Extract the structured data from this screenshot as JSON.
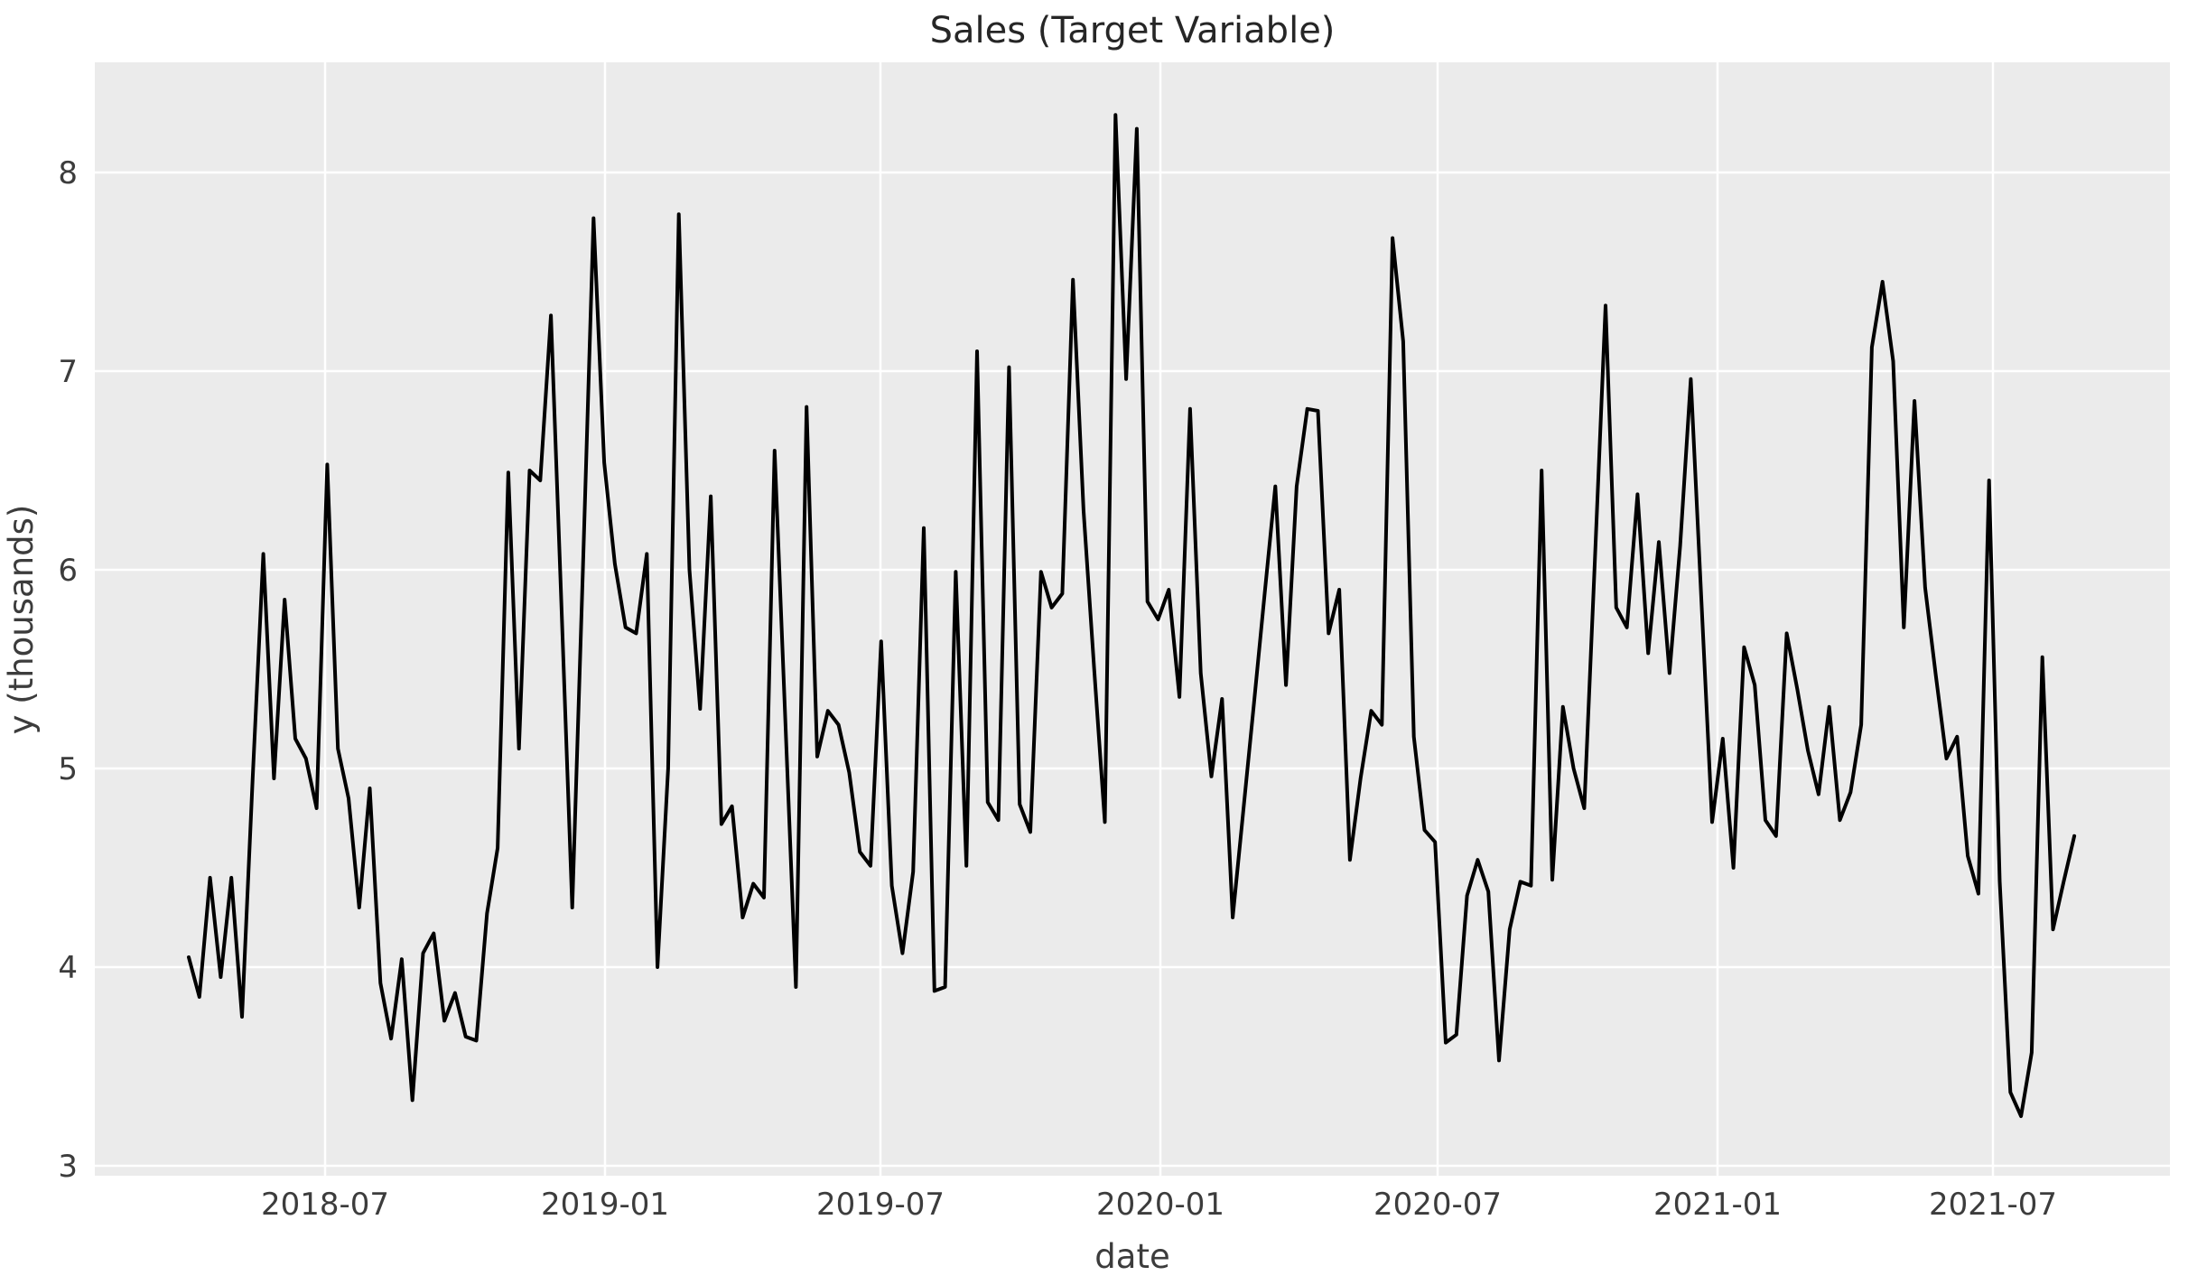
{
  "title": "Sales (Target Variable)",
  "chart_data": {
    "type": "line",
    "title": "Sales (Target Variable)",
    "xlabel": "date",
    "ylabel": "y (thousands)",
    "x_tick_labels": [
      "2018-07",
      "2019-01",
      "2019-07",
      "2020-01",
      "2020-07",
      "2021-01",
      "2021-07"
    ],
    "y_tick_labels": [
      "3",
      "4",
      "5",
      "6",
      "7",
      "8"
    ],
    "y_tick_values": [
      3,
      4,
      5,
      6,
      7,
      8
    ],
    "ylim": [
      2.95,
      8.55
    ],
    "x_range_shown": [
      "2018-04",
      "2021-09"
    ],
    "frequency": "weekly",
    "grid": true,
    "legend": false,
    "line_color": "#000000",
    "plot_background_color": "#EBEBEB",
    "grid_color": "#FFFFFF",
    "figure_background_color": "#FFFFFF",
    "series": [
      {
        "name": "y",
        "values": [
          4.05,
          3.85,
          4.45,
          3.95,
          4.45,
          3.75,
          4.95,
          6.08,
          4.95,
          5.85,
          5.15,
          5.05,
          4.8,
          6.53,
          5.1,
          4.85,
          4.3,
          4.9,
          3.92,
          3.64,
          4.04,
          3.33,
          4.07,
          4.17,
          3.73,
          3.87,
          3.65,
          3.63,
          4.27,
          4.6,
          6.49,
          5.1,
          6.5,
          6.45,
          7.28,
          5.8,
          4.3,
          6.0,
          7.77,
          6.54,
          6.03,
          5.71,
          5.68,
          6.08,
          4.0,
          5.0,
          7.79,
          6.0,
          5.3,
          6.37,
          4.72,
          4.81,
          4.25,
          4.42,
          4.35,
          6.6,
          5.25,
          3.9,
          6.82,
          5.06,
          5.29,
          5.22,
          4.98,
          4.58,
          4.51,
          5.64,
          4.41,
          4.07,
          4.48,
          6.21,
          3.88,
          3.9,
          5.99,
          4.51,
          7.1,
          4.83,
          4.74,
          7.02,
          4.82,
          4.68,
          5.99,
          5.81,
          5.88,
          7.46,
          6.3,
          5.5,
          4.73,
          8.29,
          6.96,
          8.22,
          5.84,
          5.75,
          5.9,
          5.36,
          6.81,
          5.48,
          4.96,
          5.35,
          4.25,
          4.79,
          5.33,
          5.88,
          6.42,
          5.42,
          6.42,
          6.81,
          6.8,
          5.68,
          5.9,
          4.54,
          4.95,
          5.29,
          5.22,
          7.67,
          7.15,
          5.16,
          4.69,
          4.63,
          3.62,
          3.66,
          4.36,
          4.54,
          4.38,
          3.53,
          4.19,
          4.43,
          4.41,
          6.5,
          4.44,
          5.31,
          5.0,
          4.8,
          6.05,
          7.33,
          5.81,
          5.71,
          6.38,
          5.58,
          6.14,
          5.48,
          6.12,
          6.96,
          5.84,
          4.73,
          5.15,
          4.5,
          5.61,
          5.42,
          4.74,
          4.66,
          5.68,
          5.4,
          5.09,
          4.87,
          5.31,
          4.74,
          4.88,
          5.22,
          7.12,
          7.45,
          7.05,
          5.71,
          6.85,
          5.91,
          5.47,
          5.05,
          5.16,
          4.56,
          4.37,
          6.45,
          4.43,
          3.37,
          3.25,
          3.57,
          5.56,
          4.19,
          4.43,
          4.66
        ]
      }
    ]
  }
}
